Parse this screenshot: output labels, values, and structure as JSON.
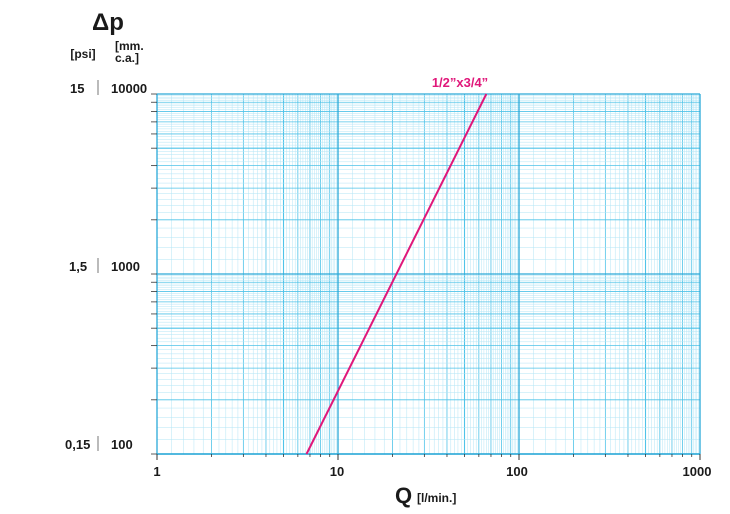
{
  "chart_data": {
    "type": "line",
    "x_scale": "log",
    "y_scale": "log",
    "xlim": [
      1,
      1000
    ],
    "ylim": [
      100,
      10000
    ],
    "x_ticks": [
      "1",
      "10",
      "100",
      "1000"
    ],
    "y_ticks_psi": [
      "0,15",
      "1,5",
      "15"
    ],
    "y_ticks_mmca": [
      "100",
      "1000",
      "10000"
    ],
    "ylabel": "Δp",
    "ylabel_unit_psi": "[psi]",
    "ylabel_unit_mm": "[mm.",
    "ylabel_unit_ca": "c.a.]",
    "xlabel": "Q",
    "xlabel_unit": "[l/min.]",
    "grid": true,
    "series": [
      {
        "name": "1/2”x3/4”",
        "x": [
          6.7,
          66
        ],
        "y": [
          100,
          10000
        ]
      }
    ],
    "colors": {
      "grid": "#4fc3e8",
      "grid_minor": "#b3e5f6",
      "series": "#e0177a"
    }
  }
}
